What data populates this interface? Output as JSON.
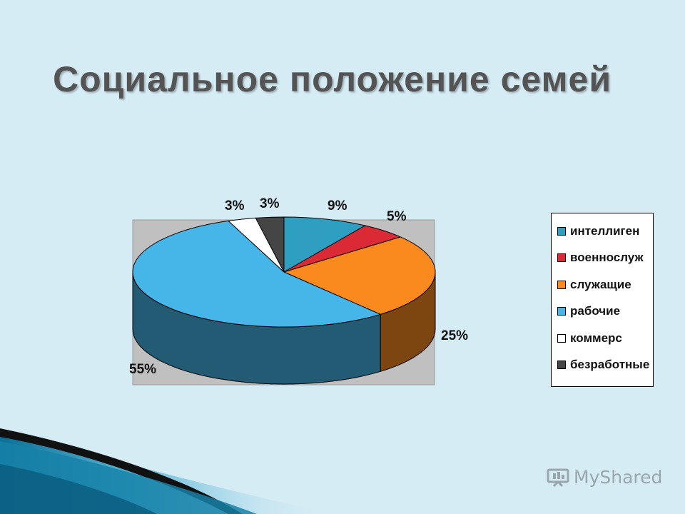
{
  "slide": {
    "title": "Социальное положение семей",
    "watermark": "MyShared"
  },
  "colors": {
    "background": "#d6ecf5",
    "plot_area": "#c0c0c0"
  },
  "chart_data": {
    "type": "pie",
    "title": "",
    "style": "3d",
    "legend_position": "right",
    "slices": [
      {
        "name": "интеллиген",
        "value": 9,
        "label": "9%",
        "color": "#2e9fc0"
      },
      {
        "name": "военнослуж",
        "value": 5,
        "label": "5%",
        "color": "#d92a35"
      },
      {
        "name": "служащие",
        "value": 25,
        "label": "25%",
        "color": "#fa8a1e"
      },
      {
        "name": "рабочие",
        "value": 55,
        "label": "55%",
        "color": "#46b6e8"
      },
      {
        "name": "коммерс",
        "value": 3,
        "label": "3%",
        "color": "#ffffff"
      },
      {
        "name": "безработные",
        "value": 3,
        "label": "3%",
        "color": "#454545"
      }
    ]
  }
}
